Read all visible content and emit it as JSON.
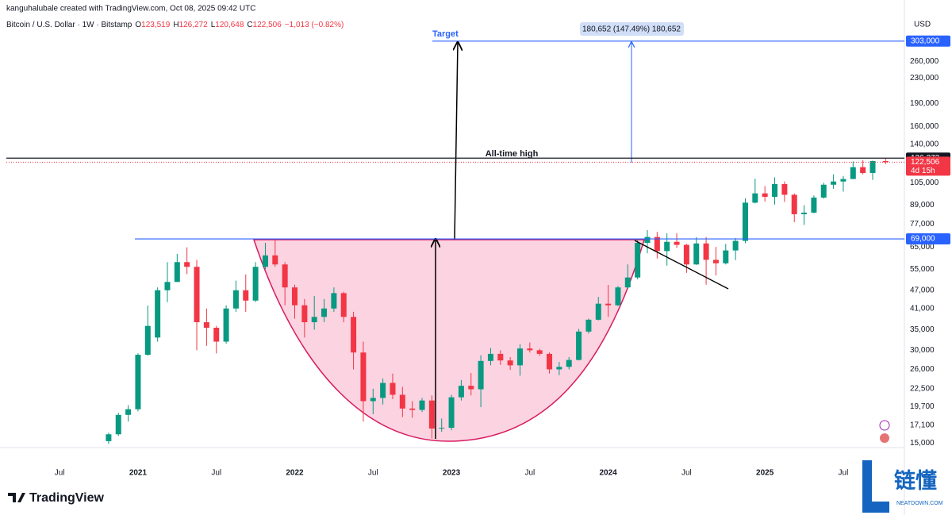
{
  "chart_data": {
    "type": "candlestick",
    "header": "kanguhalubale created with TradingView.com, Oct 08, 2025 09:42 UTC",
    "title": "Bitcoin / U.S. Dollar · 1W · Bitstamp",
    "legend_values": [
      [
        "O",
        "123,519"
      ],
      [
        "H",
        "126,272"
      ],
      [
        "L",
        "120,648"
      ],
      [
        "C",
        "122,506"
      ]
    ],
    "change": "−1,013 (−0.82%)",
    "currency": "USD",
    "up_color": "#089981",
    "down_color": "#f23645",
    "log_scale": true,
    "ylim": [
      14400,
      393000
    ],
    "yticks": [
      {
        "value": 260000,
        "label": "260,000"
      },
      {
        "value": 230000,
        "label": "230,000"
      },
      {
        "value": 190000,
        "label": "190,000"
      },
      {
        "value": 160000,
        "label": "160,000"
      },
      {
        "value": 140000,
        "label": "140,000"
      },
      {
        "value": 105000,
        "label": "105,000"
      },
      {
        "value": 89000,
        "label": "89,000"
      },
      {
        "value": 77000,
        "label": "77,000"
      },
      {
        "value": 65000,
        "label": "65,000"
      },
      {
        "value": 55000,
        "label": "55,000"
      },
      {
        "value": 47000,
        "label": "47,000"
      },
      {
        "value": 41000,
        "label": "41,000"
      },
      {
        "value": 35000,
        "label": "35,000"
      },
      {
        "value": 30000,
        "label": "30,000"
      },
      {
        "value": 26000,
        "label": "26,000"
      },
      {
        "value": 22500,
        "label": "22,500"
      },
      {
        "value": 19700,
        "label": "19,700"
      },
      {
        "value": 17100,
        "label": "17,100"
      },
      {
        "value": 15000,
        "label": "15,000"
      }
    ],
    "xlim": [
      2020.16,
      2025.89
    ],
    "xticks": [
      {
        "value": 2020.5,
        "label": "Jul"
      },
      2021,
      {
        "value": 2021.5,
        "label": "Jul"
      },
      2022,
      {
        "value": 2022.5,
        "label": "Jul"
      },
      2023,
      {
        "value": 2023.5,
        "label": "Jul"
      },
      2024,
      {
        "value": 2024.5,
        "label": "Jul"
      },
      2025,
      {
        "value": 2025.5,
        "label": "Jul"
      }
    ],
    "x": [
      2020.8125,
      2020.875,
      2020.9375,
      2021.0,
      2021.0625,
      2021.125,
      2021.1875,
      2021.25,
      2021.3125,
      2021.375,
      2021.4375,
      2021.5,
      2021.5625,
      2021.625,
      2021.6875,
      2021.75,
      2021.8125,
      2021.875,
      2021.9375,
      2022.0,
      2022.0625,
      2022.125,
      2022.1875,
      2022.25,
      2022.3125,
      2022.375,
      2022.4375,
      2022.5,
      2022.5625,
      2022.625,
      2022.6875,
      2022.75,
      2022.8125,
      2022.875,
      2022.9375,
      2023.0,
      2023.0625,
      2023.125,
      2023.1875,
      2023.25,
      2023.3125,
      2023.375,
      2023.4375,
      2023.5,
      2023.5625,
      2023.625,
      2023.6875,
      2023.75,
      2023.8125,
      2023.875,
      2023.9375,
      2024.0,
      2024.0625,
      2024.125,
      2024.1875,
      2024.25,
      2024.3125,
      2024.375,
      2024.4375,
      2024.5,
      2024.5625,
      2024.625,
      2024.6875,
      2024.75,
      2024.8125,
      2024.875,
      2024.9375,
      2025.0,
      2025.0625,
      2025.125,
      2025.1875,
      2025.25,
      2025.3125,
      2025.375,
      2025.4375,
      2025.5,
      2025.5625,
      2025.625,
      2025.6875,
      2025.77
    ],
    "ohlc": [
      [
        15200,
        16200,
        14900,
        16000
      ],
      [
        16000,
        18800,
        15800,
        18500
      ],
      [
        18500,
        19900,
        17600,
        19300
      ],
      [
        19300,
        29300,
        19000,
        29000
      ],
      [
        29000,
        41900,
        28800,
        36000
      ],
      [
        33000,
        48000,
        32000,
        47000
      ],
      [
        47000,
        58000,
        43000,
        50000
      ],
      [
        50000,
        61700,
        50000,
        58000
      ],
      [
        58000,
        64800,
        53000,
        56000
      ],
      [
        56000,
        59000,
        30000,
        37000
      ],
      [
        37000,
        41000,
        31000,
        35500
      ],
      [
        35500,
        36000,
        29300,
        32000
      ],
      [
        32000,
        42000,
        31500,
        41000
      ],
      [
        41000,
        50500,
        40000,
        47000
      ],
      [
        47000,
        52900,
        40000,
        43500
      ],
      [
        43500,
        58000,
        43000,
        56000
      ],
      [
        56000,
        67000,
        55000,
        61000
      ],
      [
        61000,
        69000,
        56000,
        57000
      ],
      [
        57000,
        58000,
        42000,
        48000
      ],
      [
        48000,
        49000,
        38000,
        42000
      ],
      [
        42000,
        44000,
        33000,
        37000
      ],
      [
        37000,
        45000,
        35000,
        38500
      ],
      [
        38500,
        44000,
        37000,
        41000
      ],
      [
        41000,
        48000,
        40000,
        46000
      ],
      [
        46000,
        46500,
        37000,
        38500
      ],
      [
        38500,
        40000,
        26000,
        29500
      ],
      [
        29500,
        32000,
        17600,
        20500
      ],
      [
        20500,
        22500,
        18600,
        21000
      ],
      [
        21000,
        24300,
        20000,
        23500
      ],
      [
        23500,
        25200,
        20800,
        21500
      ],
      [
        21500,
        22800,
        18200,
        19400
      ],
      [
        19400,
        20500,
        18100,
        19200
      ],
      [
        19200,
        21000,
        18900,
        20600
      ],
      [
        20600,
        21400,
        15500,
        16700
      ],
      [
        16700,
        18000,
        16300,
        16800
      ],
      [
        16800,
        21500,
        16500,
        21100
      ],
      [
        21100,
        24000,
        20600,
        23000
      ],
      [
        23000,
        25300,
        21400,
        22400
      ],
      [
        22400,
        28900,
        19600,
        27700
      ],
      [
        27700,
        30500,
        26800,
        29200
      ],
      [
        29200,
        30000,
        26900,
        27800
      ],
      [
        27800,
        28500,
        25900,
        26800
      ],
      [
        26800,
        31400,
        24800,
        30400
      ],
      [
        30400,
        31800,
        29500,
        30000
      ],
      [
        30000,
        30300,
        28800,
        29200
      ],
      [
        29200,
        29500,
        25200,
        26000
      ],
      [
        26000,
        27500,
        24900,
        26500
      ],
      [
        26500,
        28500,
        26000,
        27900
      ],
      [
        27900,
        35200,
        27800,
        34500
      ],
      [
        34500,
        38000,
        34000,
        37700
      ],
      [
        37700,
        44700,
        37500,
        42500
      ],
      [
        42500,
        48900,
        38500,
        42000
      ],
      [
        42000,
        48500,
        41800,
        48000
      ],
      [
        48000,
        57000,
        47500,
        51700
      ],
      [
        51700,
        69000,
        51000,
        67000
      ],
      [
        67000,
        73700,
        62000,
        70000
      ],
      [
        70000,
        72700,
        59600,
        63000
      ],
      [
        63000,
        71900,
        56500,
        67500
      ],
      [
        67500,
        71900,
        64500,
        66000
      ],
      [
        66000,
        66500,
        53500,
        57000
      ],
      [
        57000,
        69900,
        56800,
        66700
      ],
      [
        66700,
        70000,
        49000,
        59000
      ],
      [
        59000,
        65000,
        52500,
        57500
      ],
      [
        57500,
        66500,
        57000,
        63300
      ],
      [
        63300,
        69500,
        58900,
        68000
      ],
      [
        68000,
        93500,
        66800,
        90500
      ],
      [
        90500,
        108300,
        90000,
        97000
      ],
      [
        97000,
        102500,
        91200,
        94500
      ],
      [
        94500,
        109400,
        89200,
        104000
      ],
      [
        104000,
        106000,
        91000,
        96000
      ],
      [
        96000,
        97000,
        78200,
        83000
      ],
      [
        83000,
        88800,
        76600,
        84000
      ],
      [
        84000,
        95500,
        83500,
        94000
      ],
      [
        94000,
        105000,
        93300,
        103500
      ],
      [
        103500,
        111900,
        100400,
        106000
      ],
      [
        106000,
        110500,
        98300,
        108000
      ],
      [
        108000,
        123200,
        108000,
        118000
      ],
      [
        118000,
        124500,
        111900,
        113000
      ],
      [
        113000,
        124000,
        107300,
        123519
      ],
      [
        123519,
        126272,
        120648,
        122506
      ]
    ],
    "levels": [
      {
        "value": 303000,
        "label": "303,000",
        "color": "#2962ff"
      },
      {
        "value": 126272,
        "label": "126,272",
        "color": "#131722"
      },
      {
        "value": 69000,
        "label": "69,000",
        "color": "#2962ff"
      }
    ],
    "last_price": {
      "value": 122506,
      "label": "122,506",
      "countdown": "4d 15h",
      "color": "#f23645"
    },
    "annotations": {
      "target": "Target",
      "ath": "All-time high",
      "measure": "180,652 (147.49%) 180,652"
    },
    "brand": "TradingView",
    "watermark": {
      "name": "链懂",
      "site": "NEATDOWN.COM"
    }
  }
}
